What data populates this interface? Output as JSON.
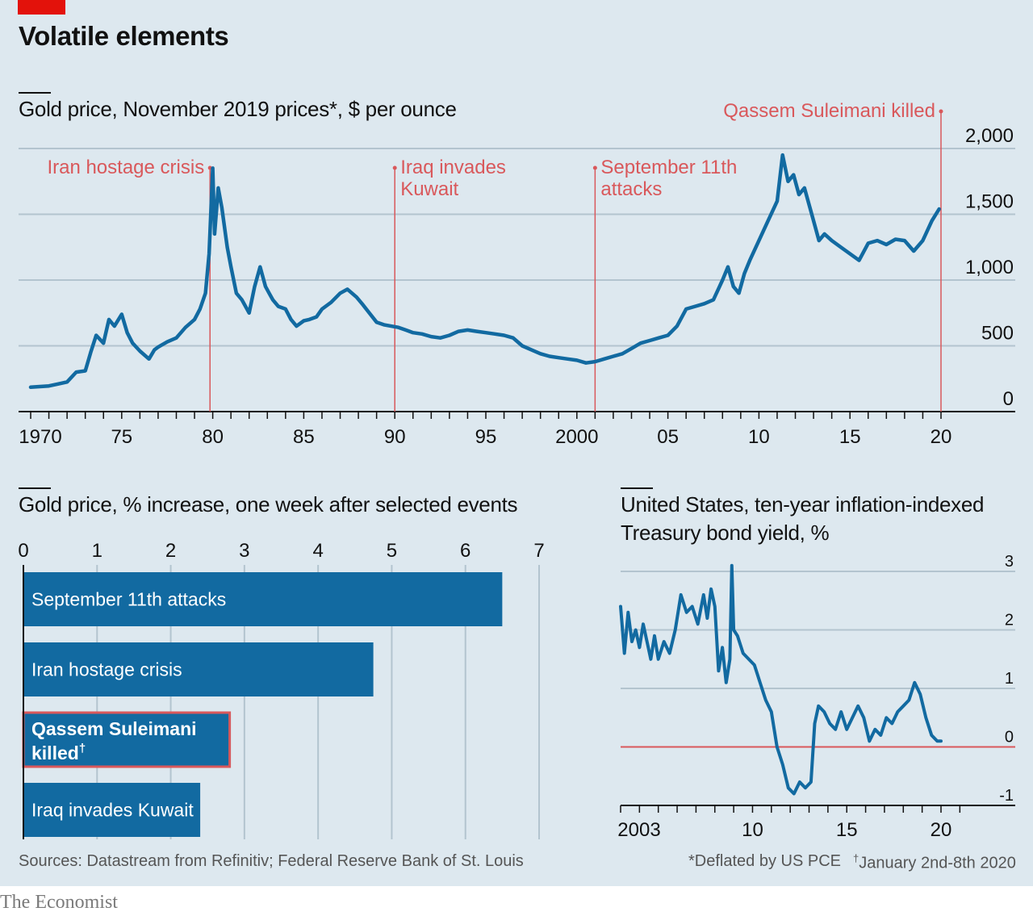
{
  "headline": "Volatile elements",
  "colors": {
    "background": "#dde8ef",
    "series": "#126aa1",
    "annotation": "#d9585b",
    "brand_red": "#e3120b",
    "zero_line": "#d9585b"
  },
  "sources": "Sources: Datastream from Refinitiv; Federal Reserve Bank of St. Louis",
  "footnotes": {
    "deflated": "*Deflated by US PCE",
    "dagger": "†",
    "dates": "January 2nd-8th 2020"
  },
  "logo": "The Economist",
  "chart_data": [
    {
      "type": "line",
      "title": "Gold price, November 2019 prices*, $ per ounce",
      "ylim": [
        0,
        2000
      ],
      "yticks": [
        0,
        500,
        1000,
        1500,
        2000
      ],
      "ytick_labels": [
        "0",
        "500",
        "1,000",
        "1,500",
        "2,000"
      ],
      "xlim": [
        1969.9,
        2020.2
      ],
      "xtick_labels": [
        {
          "x": 1970,
          "label": "1970"
        },
        {
          "x": 1975,
          "label": "75"
        },
        {
          "x": 1980,
          "label": "80"
        },
        {
          "x": 1985,
          "label": "85"
        },
        {
          "x": 1990,
          "label": "90"
        },
        {
          "x": 1995,
          "label": "95"
        },
        {
          "x": 2000,
          "label": "2000"
        },
        {
          "x": 2005,
          "label": "05"
        },
        {
          "x": 2010,
          "label": "10"
        },
        {
          "x": 2015,
          "label": "15"
        },
        {
          "x": 2020,
          "label": "20"
        }
      ],
      "annotations": [
        {
          "x": 1979.85,
          "label": [
            "Iran hostage crisis"
          ],
          "align": "left"
        },
        {
          "x": 1990.0,
          "label": [
            "Iraq invades",
            "Kuwait"
          ],
          "align": "right"
        },
        {
          "x": 2001.0,
          "label": [
            "September 11th",
            "attacks"
          ],
          "align": "right"
        },
        {
          "x": 2020.0,
          "label": [
            "Qassem Suleimani killed"
          ],
          "align": "left"
        }
      ],
      "series": [
        {
          "x": [
            1970.0,
            1970.5,
            1971.0,
            1971.5,
            1972.0,
            1972.5,
            1973.0,
            1973.3,
            1973.6,
            1974.0,
            1974.3,
            1974.6,
            1975.0,
            1975.3,
            1975.6,
            1976.0,
            1976.5,
            1976.8,
            1977.0,
            1977.5,
            1978.0,
            1978.5,
            1979.0,
            1979.3,
            1979.6,
            1979.8,
            1980.0,
            1980.1,
            1980.3,
            1980.5,
            1980.8,
            1981.0,
            1981.3,
            1981.6,
            1982.0,
            1982.3,
            1982.6,
            1982.9,
            1983.1,
            1983.3,
            1983.6,
            1984.0,
            1984.3,
            1984.6,
            1985.0,
            1985.3,
            1985.7,
            1986.0,
            1986.5,
            1987.0,
            1987.4,
            1987.9,
            1988.2,
            1988.6,
            1989.0,
            1989.4,
            1989.8,
            1990.2,
            1990.6,
            1991.0,
            1991.5,
            1992.0,
            1992.5,
            1993.0,
            1993.5,
            1994.0,
            1994.5,
            1995.0,
            1995.5,
            1996.0,
            1996.5,
            1997.0,
            1997.5,
            1998.0,
            1998.5,
            1999.0,
            1999.5,
            2000.0,
            2000.5,
            2001.0,
            2001.5,
            2002.0,
            2002.5,
            2003.0,
            2003.5,
            2004.0,
            2004.5,
            2005.0,
            2005.5,
            2006.0,
            2006.5,
            2007.0,
            2007.5,
            2008.0,
            2008.3,
            2008.6,
            2008.9,
            2009.2,
            2009.5,
            2010.0,
            2010.5,
            2011.0,
            2011.3,
            2011.6,
            2011.9,
            2012.2,
            2012.5,
            2012.8,
            2013.0,
            2013.3,
            2013.6,
            2014.0,
            2014.5,
            2015.0,
            2015.5,
            2016.0,
            2016.5,
            2017.0,
            2017.5,
            2018.0,
            2018.5,
            2019.0,
            2019.5,
            2019.9
          ],
          "y": [
            185,
            190,
            195,
            210,
            225,
            300,
            310,
            450,
            580,
            520,
            700,
            650,
            740,
            600,
            520,
            460,
            400,
            470,
            490,
            530,
            560,
            640,
            700,
            780,
            900,
            1200,
            1850,
            1350,
            1700,
            1550,
            1250,
            1100,
            900,
            850,
            750,
            950,
            1100,
            950,
            900,
            850,
            800,
            780,
            700,
            650,
            690,
            700,
            720,
            780,
            830,
            900,
            930,
            870,
            820,
            750,
            680,
            660,
            650,
            640,
            620,
            600,
            590,
            570,
            560,
            580,
            610,
            620,
            610,
            600,
            590,
            580,
            560,
            500,
            470,
            440,
            420,
            410,
            400,
            390,
            370,
            380,
            400,
            420,
            440,
            480,
            520,
            540,
            560,
            580,
            650,
            780,
            800,
            820,
            850,
            1000,
            1100,
            950,
            900,
            1050,
            1150,
            1300,
            1450,
            1600,
            1950,
            1750,
            1800,
            1650,
            1700,
            1550,
            1450,
            1300,
            1350,
            1300,
            1250,
            1200,
            1150,
            1280,
            1300,
            1270,
            1310,
            1300,
            1220,
            1300,
            1450,
            1540
          ]
        }
      ]
    },
    {
      "type": "bar",
      "title": "Gold price, % increase, one week after selected events",
      "xlim": [
        0,
        7
      ],
      "xticks": [
        0,
        1,
        2,
        3,
        4,
        5,
        6,
        7
      ],
      "categories": [
        "September 11th attacks",
        "Iran hostage crisis",
        "Qassem Suleimani killed†",
        "Iraq invades Kuwait"
      ],
      "label_lines": [
        [
          "September 11th attacks"
        ],
        [
          "Iran hostage crisis"
        ],
        [
          "Qassem Suleimani",
          "killed"
        ],
        [
          "Iraq invades Kuwait"
        ]
      ],
      "values": [
        6.5,
        4.75,
        2.8,
        2.4
      ],
      "highlight": [
        false,
        false,
        true,
        false
      ]
    },
    {
      "type": "line",
      "title_lines": [
        "United States, ten-year inflation-indexed",
        "Treasury bond yield, %"
      ],
      "ylim": [
        -1,
        3
      ],
      "yticks": [
        -1,
        0,
        1,
        2,
        3
      ],
      "xlim": [
        2003,
        2021.5
      ],
      "xtick_labels": [
        {
          "x": 2003,
          "label": "2003"
        },
        {
          "x": 2010,
          "label": "10"
        },
        {
          "x": 2015,
          "label": "15"
        },
        {
          "x": 2020,
          "label": "20"
        }
      ],
      "series": [
        {
          "x": [
            2003.0,
            2003.2,
            2003.4,
            2003.6,
            2003.8,
            2004.0,
            2004.2,
            2004.4,
            2004.6,
            2004.8,
            2005.0,
            2005.3,
            2005.6,
            2005.9,
            2006.2,
            2006.5,
            2006.8,
            2007.1,
            2007.4,
            2007.6,
            2007.8,
            2008.0,
            2008.2,
            2008.4,
            2008.6,
            2008.8,
            2008.9,
            2009.0,
            2009.2,
            2009.5,
            2009.8,
            2010.1,
            2010.4,
            2010.7,
            2011.0,
            2011.3,
            2011.6,
            2011.9,
            2012.2,
            2012.5,
            2012.8,
            2013.1,
            2013.3,
            2013.5,
            2013.8,
            2014.1,
            2014.4,
            2014.7,
            2015.0,
            2015.3,
            2015.6,
            2015.9,
            2016.2,
            2016.5,
            2016.8,
            2017.1,
            2017.4,
            2017.7,
            2018.0,
            2018.3,
            2018.6,
            2018.9,
            2019.2,
            2019.5,
            2019.8,
            2020.0
          ],
          "y": [
            2.4,
            1.6,
            2.3,
            1.8,
            2.0,
            1.7,
            2.1,
            1.8,
            1.5,
            1.9,
            1.5,
            1.8,
            1.6,
            2.0,
            2.6,
            2.3,
            2.4,
            2.1,
            2.6,
            2.2,
            2.7,
            2.4,
            1.3,
            1.7,
            1.1,
            1.5,
            3.1,
            2.0,
            1.9,
            1.6,
            1.5,
            1.4,
            1.1,
            0.8,
            0.6,
            0.0,
            -0.3,
            -0.7,
            -0.8,
            -0.6,
            -0.7,
            -0.6,
            0.4,
            0.7,
            0.6,
            0.4,
            0.3,
            0.6,
            0.3,
            0.5,
            0.7,
            0.5,
            0.1,
            0.3,
            0.2,
            0.5,
            0.4,
            0.6,
            0.7,
            0.8,
            1.1,
            0.9,
            0.5,
            0.2,
            0.1,
            0.1
          ]
        }
      ]
    }
  ]
}
